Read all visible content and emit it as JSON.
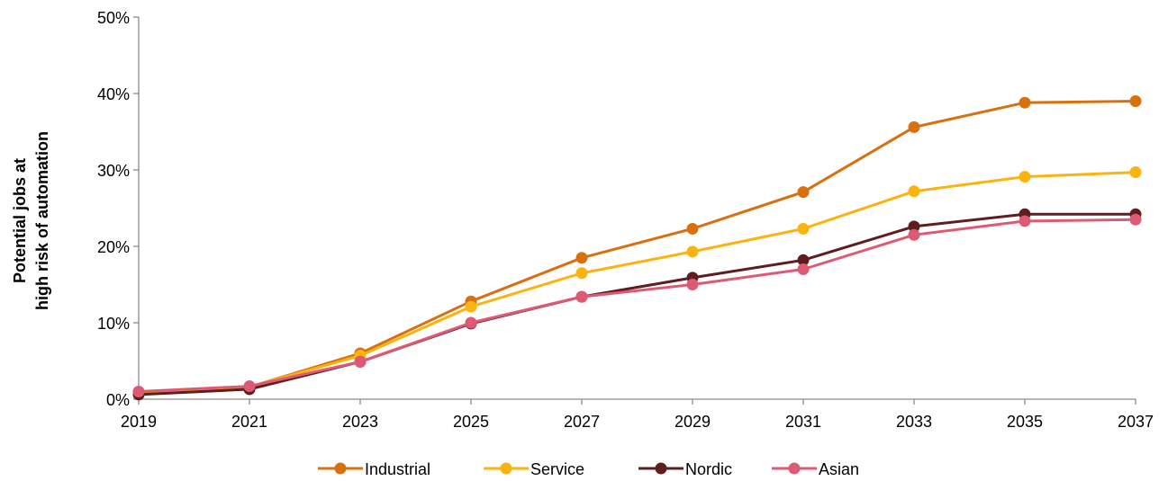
{
  "chart_data": {
    "type": "line",
    "title": "",
    "xlabel": "",
    "ylabel_lines": [
      "Potential jobs at",
      "high risk of automation"
    ],
    "x": [
      2019,
      2021,
      2023,
      2025,
      2027,
      2029,
      2031,
      2033,
      2035,
      2037
    ],
    "x_tick_labels": [
      "2019",
      "2021",
      "2023",
      "2025",
      "2027",
      "2029",
      "2031",
      "2033",
      "2035",
      "2037"
    ],
    "ylim": [
      0,
      50
    ],
    "y_ticks": [
      0,
      10,
      20,
      30,
      40,
      50
    ],
    "y_tick_labels": [
      "0%",
      "10%",
      "20%",
      "30%",
      "40%",
      "50%"
    ],
    "grid": false,
    "legend_position": "bottom",
    "series": [
      {
        "name": "Industrial",
        "color": "#D9700F",
        "values": [
          0.9,
          1.6,
          6.0,
          12.8,
          18.5,
          22.3,
          27.1,
          35.6,
          38.8,
          39.0
        ]
      },
      {
        "name": "Service",
        "color": "#FBB30F",
        "values": [
          0.9,
          1.6,
          5.7,
          12.1,
          16.5,
          19.3,
          22.3,
          27.2,
          29.1,
          29.7
        ]
      },
      {
        "name": "Nordic",
        "color": "#5E1E1E",
        "values": [
          0.6,
          1.3,
          4.9,
          9.9,
          13.4,
          15.9,
          18.2,
          22.6,
          24.2,
          24.2
        ]
      },
      {
        "name": "Asian",
        "color": "#DE5A74",
        "values": [
          1.0,
          1.7,
          4.9,
          10.0,
          13.4,
          15.0,
          17.0,
          21.5,
          23.3,
          23.5
        ]
      }
    ]
  }
}
